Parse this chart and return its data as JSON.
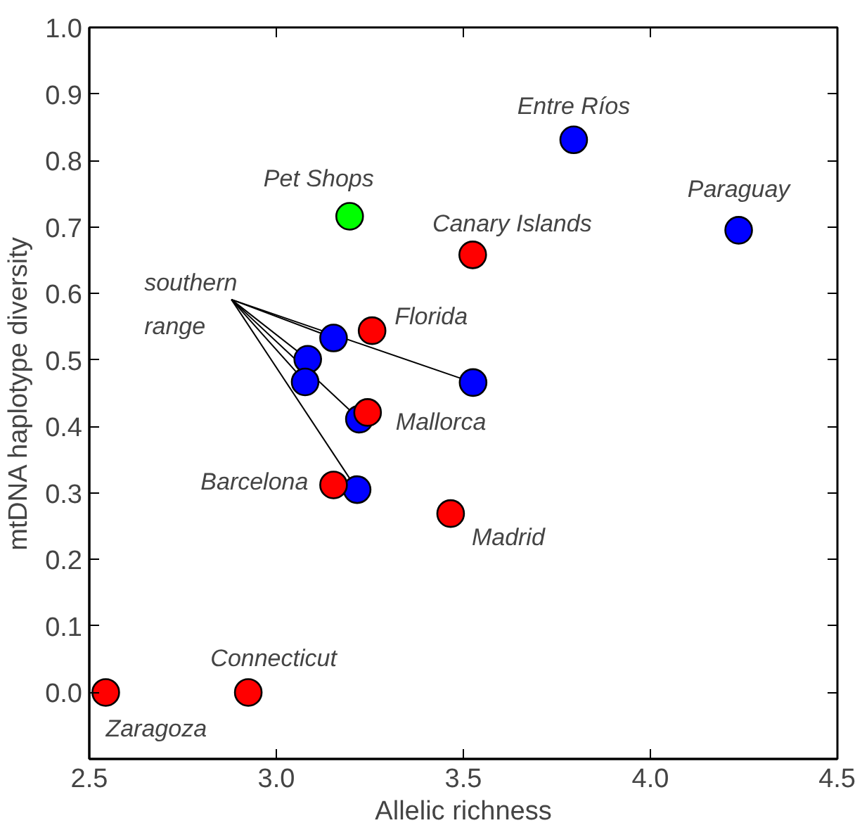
{
  "chart_data": {
    "type": "scatter",
    "xlabel": "Allelic richness",
    "ylabel": "mtDNA haplotype diversity",
    "xlim": [
      2.5,
      4.5
    ],
    "ylim": [
      -0.1,
      1.0
    ],
    "xticks": [
      2.5,
      {
        "value": 3,
        "label": "3.0"
      },
      3.5,
      {
        "value": 4,
        "label": "4.0"
      },
      4.5
    ],
    "yticks": [
      {
        "value": 0,
        "label": "0.0"
      },
      0.1,
      0.2,
      0.3,
      0.4,
      0.5,
      0.6,
      0.7,
      0.8,
      0.9,
      {
        "value": 1,
        "label": "1.0"
      }
    ],
    "grid": false,
    "marker": "circle",
    "series": [
      {
        "color": "#ff0000",
        "x": [
          3.525,
          3.256,
          3.244,
          3.153,
          3.466,
          2.544,
          2.925
        ],
        "values": [
          0.658,
          0.544,
          0.421,
          0.312,
          0.269,
          0.0,
          0.0
        ]
      },
      {
        "color": "#0000ff",
        "x": [
          3.795,
          4.236
        ],
        "values": [
          0.831,
          0.695
        ]
      },
      {
        "color": "#00ff00",
        "x": [
          3.196
        ],
        "values": [
          0.716
        ]
      },
      {
        "name": "southern range",
        "color": "#0000ff",
        "x": [
          3.153,
          3.084,
          3.077,
          3.526,
          3.222,
          3.216
        ],
        "values": [
          0.533,
          0.501,
          0.467,
          0.466,
          0.411,
          0.305
        ]
      }
    ],
    "annotations": [
      {
        "text": "Entre Ríos",
        "x": 3.795,
        "y": 0.831
      },
      {
        "text": "Pet Shops",
        "x": 3.196,
        "y": 0.716
      },
      {
        "text": "Paraguay",
        "x": 4.236,
        "y": 0.695
      },
      {
        "text": "Canary Islands",
        "x": 3.525,
        "y": 0.658
      },
      {
        "text": "Florida",
        "x": 3.256,
        "y": 0.544
      },
      {
        "text": "Mallorca",
        "x": 3.244,
        "y": 0.421
      },
      {
        "text": "Barcelona",
        "x": 3.153,
        "y": 0.312
      },
      {
        "text": "Madrid",
        "x": 3.466,
        "y": 0.269
      },
      {
        "text": "Zaragoza",
        "x": 2.544,
        "y": 0.0
      },
      {
        "text": "Connecticut",
        "x": 2.925,
        "y": 0.0
      }
    ]
  }
}
